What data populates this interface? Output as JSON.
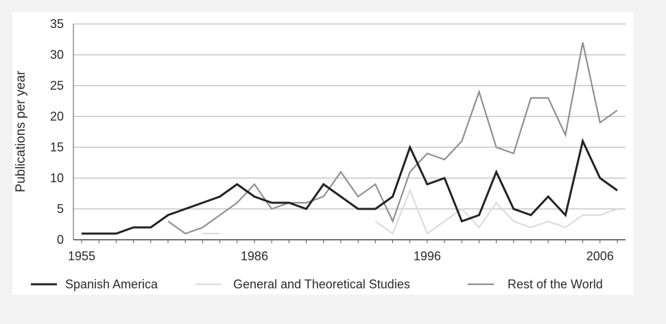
{
  "chart_data": {
    "type": "line",
    "ylabel": "Publications per year",
    "xlabel": "",
    "ylim": [
      0,
      35
    ],
    "yticks": [
      0,
      5,
      10,
      15,
      20,
      25,
      30,
      35
    ],
    "x_tick_labels": [
      "1955",
      "1986",
      "1996",
      "2006"
    ],
    "x_tick_index": [
      0,
      10,
      20,
      30
    ],
    "x_count": 32,
    "grid": "horizontal",
    "legend_position": "bottom",
    "series": [
      {
        "name": "Spanish America",
        "color": "#222222",
        "values": [
          1,
          1,
          1,
          2,
          2,
          4,
          5,
          6,
          7,
          9,
          7,
          6,
          6,
          5,
          9,
          7,
          5,
          5,
          7,
          15,
          9,
          10,
          3,
          4,
          11,
          5,
          4,
          7,
          4,
          16,
          10,
          8
        ]
      },
      {
        "name": "General and Theoretical Studies",
        "color": "#dcdcdc",
        "values": [
          null,
          null,
          null,
          null,
          null,
          null,
          null,
          1,
          1,
          null,
          null,
          null,
          null,
          null,
          null,
          null,
          null,
          3,
          1,
          8,
          1,
          3,
          5,
          2,
          6,
          3,
          2,
          3,
          2,
          4,
          4,
          5
        ]
      },
      {
        "name": "Rest of the World",
        "color": "#8f8f8f",
        "values": [
          null,
          null,
          null,
          null,
          null,
          3,
          1,
          2,
          4,
          6,
          9,
          5,
          6,
          6,
          7,
          11,
          7,
          9,
          3,
          11,
          14,
          13,
          16,
          24,
          15,
          14,
          23,
          23,
          17,
          32,
          19,
          21
        ]
      }
    ]
  }
}
